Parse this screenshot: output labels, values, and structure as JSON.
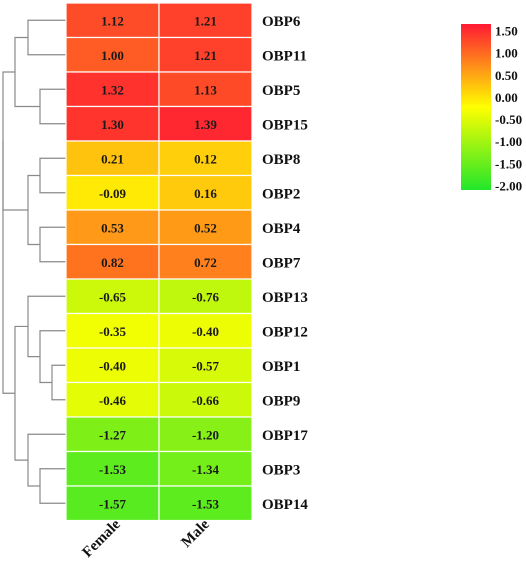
{
  "chart_data": {
    "type": "heatmap",
    "columns": [
      "Female",
      "Male"
    ],
    "rows": [
      "OBP6",
      "OBP11",
      "OBP5",
      "OBP15",
      "OBP8",
      "OBP2",
      "OBP4",
      "OBP7",
      "OBP13",
      "OBP12",
      "OBP1",
      "OBP9",
      "OBP17",
      "OBP3",
      "OBP14"
    ],
    "values": [
      [
        "1.12",
        "1.21"
      ],
      [
        "1.00",
        "1.21"
      ],
      [
        "1.32",
        "1.13"
      ],
      [
        "1.30",
        "1.39"
      ],
      [
        "0.21",
        "0.12"
      ],
      [
        "-0.09",
        "0.16"
      ],
      [
        "0.53",
        "0.52"
      ],
      [
        "0.82",
        "0.72"
      ],
      [
        "-0.65",
        "-0.76"
      ],
      [
        "-0.35",
        "-0.40"
      ],
      [
        "-0.40",
        "-0.57"
      ],
      [
        "-0.46",
        "-0.66"
      ],
      [
        "-1.27",
        "-1.20"
      ],
      [
        "-1.53",
        "-1.34"
      ],
      [
        "-1.57",
        "-1.53"
      ]
    ],
    "color_scale": {
      "min": -2.0,
      "max": 1.5,
      "stops": [
        {
          "value": -2.0,
          "color": "#22e62a"
        },
        {
          "value": -0.25,
          "color": "#ffff00"
        },
        {
          "value": 1.5,
          "color": "#ff1a33"
        }
      ],
      "tick_labels": [
        "1.50",
        "1.00",
        "0.50",
        "0.00",
        "-0.50",
        "-1.00",
        "-1.50",
        "-2.00"
      ]
    },
    "legend_placement": "top-right"
  }
}
